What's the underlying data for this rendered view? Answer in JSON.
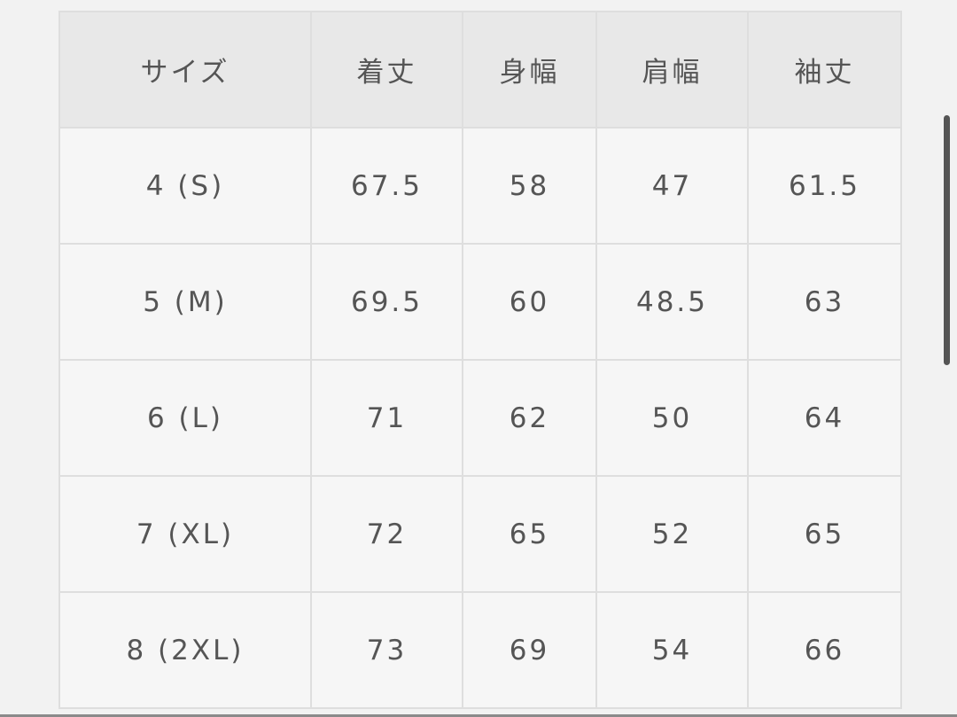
{
  "table": {
    "headers": [
      "サイズ",
      "着丈",
      "身幅",
      "肩幅",
      "袖丈"
    ],
    "rows": [
      [
        "4 (S)",
        "67.5",
        "58",
        "47",
        "61.5"
      ],
      [
        "5 (M)",
        "69.5",
        "60",
        "48.5",
        "63"
      ],
      [
        "6 (L)",
        "71",
        "62",
        "50",
        "64"
      ],
      [
        "7 (XL)",
        "72",
        "65",
        "52",
        "65"
      ],
      [
        "8 (2XL)",
        "73",
        "69",
        "54",
        "66"
      ]
    ]
  }
}
